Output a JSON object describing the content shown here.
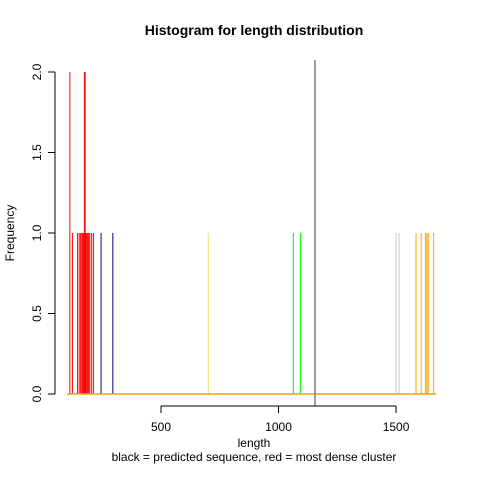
{
  "chart_data": {
    "type": "bar",
    "title": "Histogram for length distribution",
    "xlabel": "length",
    "subtitle": "black = predicted sequence, red = most dense cluster",
    "ylabel": "Frequency",
    "xlim": [
      100,
      1670
    ],
    "ylim": [
      0,
      2
    ],
    "x_ticks": [
      500,
      1000,
      1500
    ],
    "y_ticks": [
      0.0,
      0.5,
      1.0,
      1.5,
      2.0
    ],
    "x_tick_labels": [
      "500",
      "1000",
      "1500"
    ],
    "y_tick_labels": [
      "0.0",
      "0.5",
      "1.0",
      "1.5",
      "2.0"
    ],
    "grid": false,
    "reference_line": {
      "x": 1155,
      "color": "#808080"
    },
    "baseline_color": "#e8a600",
    "series": [
      {
        "color": "#ff0000",
        "bars": [
          {
            "x": 112,
            "count": 2
          },
          {
            "x": 123,
            "count": 1
          },
          {
            "x": 145,
            "count": 1
          },
          {
            "x": 152,
            "count": 1
          },
          {
            "x": 158,
            "count": 1
          },
          {
            "x": 163,
            "count": 1
          },
          {
            "x": 167,
            "count": 1
          },
          {
            "x": 170,
            "count": 1
          },
          {
            "x": 174,
            "count": 2
          },
          {
            "x": 177,
            "count": 2
          },
          {
            "x": 180,
            "count": 1
          },
          {
            "x": 184,
            "count": 1
          },
          {
            "x": 188,
            "count": 1
          },
          {
            "x": 192,
            "count": 1
          },
          {
            "x": 197,
            "count": 1
          },
          {
            "x": 205,
            "count": 1
          },
          {
            "x": 213,
            "count": 1
          }
        ]
      },
      {
        "color": "#000080",
        "bars": [
          {
            "x": 245,
            "count": 1
          },
          {
            "x": 295,
            "count": 1
          }
        ]
      },
      {
        "color": "#f0e060",
        "bars": [
          {
            "x": 701,
            "count": 1
          }
        ]
      },
      {
        "color": "#00ee00",
        "bars": [
          {
            "x": 1063,
            "count": 1
          },
          {
            "x": 1093,
            "count": 1
          }
        ]
      },
      {
        "color": "#c8c8c8",
        "bars": [
          {
            "x": 1500,
            "count": 1
          },
          {
            "x": 1513,
            "count": 1
          }
        ]
      },
      {
        "color": "#ffa500",
        "bars": [
          {
            "x": 1585,
            "count": 1
          },
          {
            "x": 1607,
            "count": 1
          },
          {
            "x": 1625,
            "count": 1
          },
          {
            "x": 1631,
            "count": 1
          },
          {
            "x": 1637,
            "count": 1
          },
          {
            "x": 1660,
            "count": 1
          }
        ]
      }
    ]
  }
}
